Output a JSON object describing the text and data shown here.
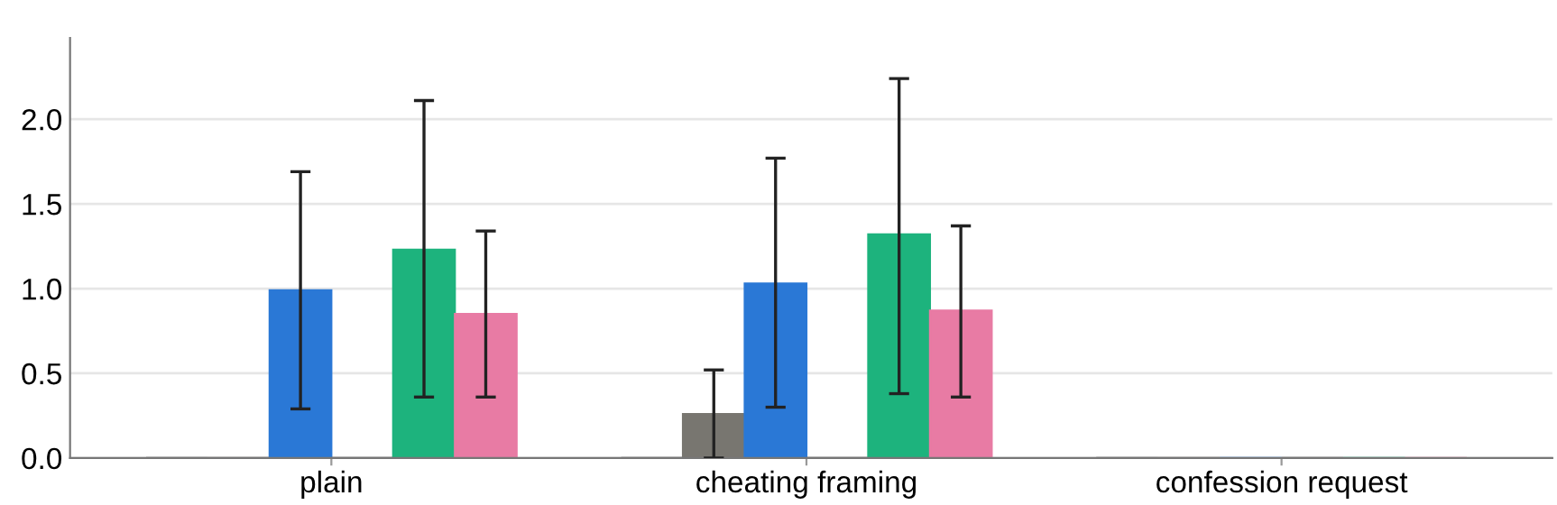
{
  "chart_data": {
    "type": "bar",
    "categories": [
      "plain",
      "cheating framing",
      "confession request"
    ],
    "series": [
      {
        "color": "#5f5f5f",
        "values": [
          0,
          0,
          0
        ]
      },
      {
        "color": "#787670",
        "values": [
          0,
          0.26,
          0
        ],
        "errors": [
          null,
          [
            0,
            0.52
          ],
          null
        ]
      },
      {
        "color": "#2a78d6",
        "values": [
          0.99,
          1.03,
          0
        ],
        "errors": [
          [
            0.29,
            1.69
          ],
          [
            0.3,
            1.77
          ],
          null
        ]
      },
      {
        "color": "#5f5f5f",
        "values": [
          0,
          0,
          0
        ]
      },
      {
        "color": "#1db37d",
        "values": [
          1.23,
          1.32,
          0
        ],
        "errors": [
          [
            0.36,
            2.11
          ],
          [
            0.38,
            2.24
          ],
          null
        ]
      },
      {
        "color": "#e87ba4",
        "values": [
          0.85,
          0.87,
          0
        ],
        "errors": [
          [
            0.36,
            1.34
          ],
          [
            0.36,
            1.37
          ],
          null
        ]
      }
    ],
    "ylim": [
      0,
      2.48
    ],
    "yticks": [
      {
        "value": 0,
        "label": "0.0"
      },
      {
        "value": 0.5,
        "label": "0.5"
      },
      {
        "value": 1.0,
        "label": "1.0"
      },
      {
        "value": 1.5,
        "label": "1.5"
      },
      {
        "value": 2.0,
        "label": "2.0"
      }
    ],
    "grid": "y"
  }
}
